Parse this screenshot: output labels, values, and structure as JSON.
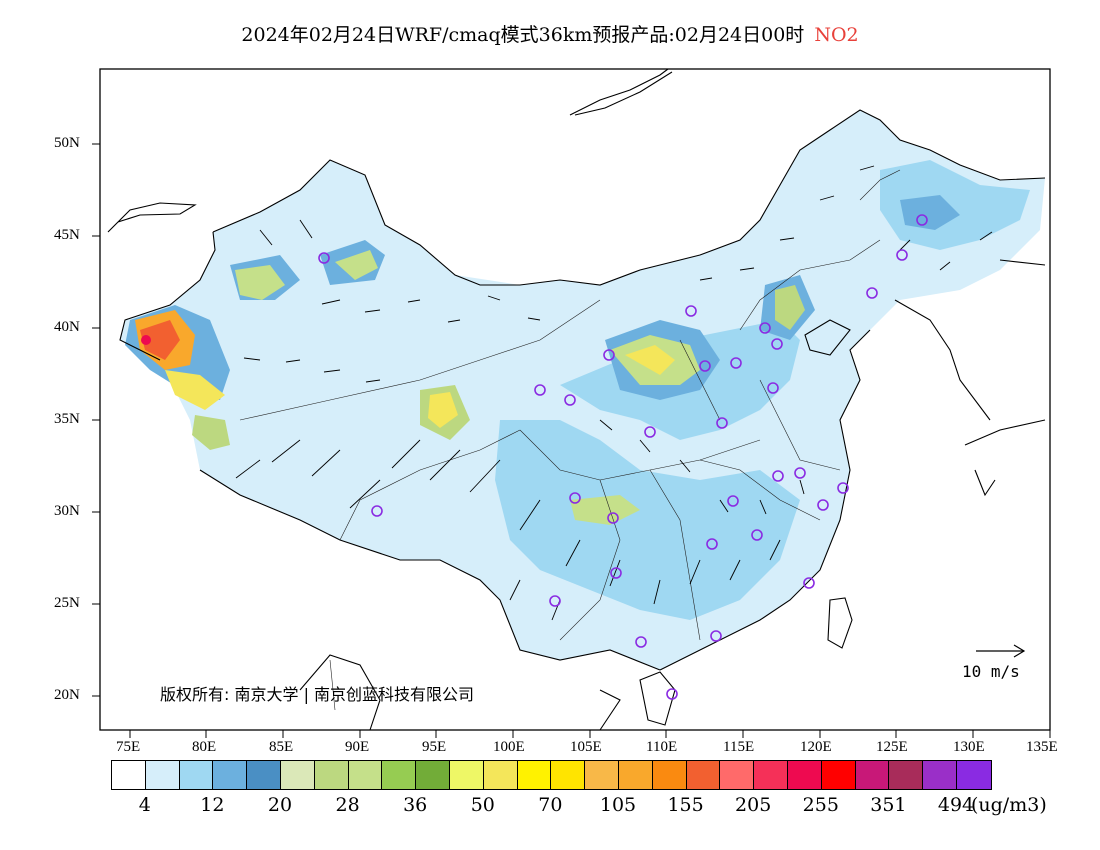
{
  "title": {
    "main": "2024年02月24日WRF/cmaq模式36km预报产品:02月24日00时",
    "species": "NO2"
  },
  "latitude_labels": [
    "50N",
    "45N",
    "40N",
    "35N",
    "30N",
    "25N",
    "20N"
  ],
  "longitude_labels": [
    "75E",
    "80E",
    "85E",
    "90E",
    "95E",
    "100E",
    "105E",
    "110E",
    "115E",
    "120E",
    "125E",
    "130E",
    "135E"
  ],
  "copyright": "版权所有: 南京大学 | 南京创蓝科技有限公司",
  "wind_reference": "10 m/s",
  "legend": {
    "ticks": [
      "4",
      "12",
      "20",
      "28",
      "36",
      "50",
      "70",
      "105",
      "155",
      "205",
      "255",
      "351",
      "494"
    ],
    "unit": "(ug/m3)",
    "colors": [
      "#ffffff",
      "#d6eefa",
      "#9fd8f2",
      "#6cb0de",
      "#4a8fc4",
      "#dbe8b8",
      "#bcd880",
      "#c5e08a",
      "#96cc52",
      "#72ac38",
      "#eef766",
      "#f4e65a",
      "#fff200",
      "#ffe400",
      "#f8b848",
      "#f9a82c",
      "#fa8a10",
      "#f26030",
      "#ff6a6a",
      "#f53058",
      "#ee0a50",
      "#ff0000",
      "#c81878",
      "#a82c5a",
      "#9a2fc8",
      "#8a2be2"
    ]
  }
}
